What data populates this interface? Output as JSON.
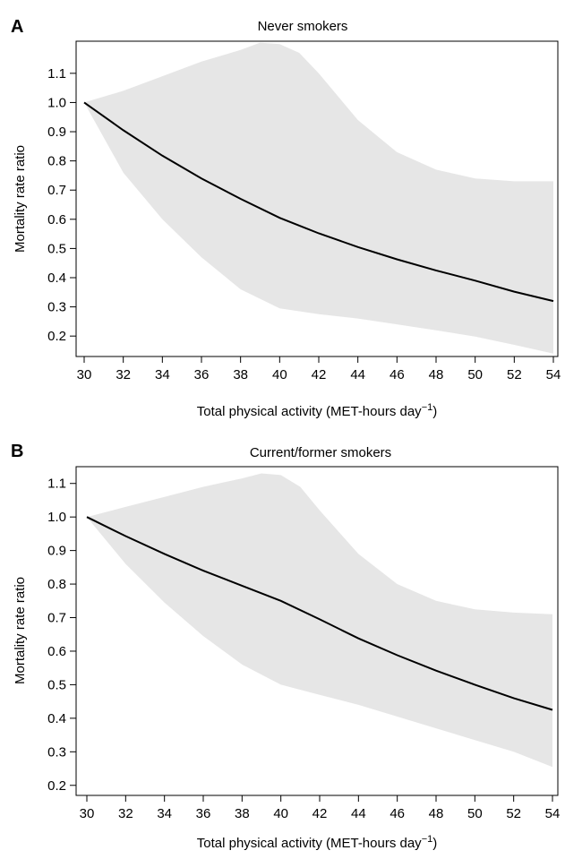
{
  "chart_data": [
    {
      "panel_letter": "A",
      "type": "line",
      "title": "Never smokers",
      "xlabel": "Total physical activity (MET-hours day",
      "xlabel_sup": "−1",
      "xlabel_close": ")",
      "ylabel": "Mortality rate ratio",
      "xlim": [
        30,
        54
      ],
      "ylim": [
        0.13,
        1.21
      ],
      "x_ticks": [
        30,
        32,
        34,
        36,
        38,
        40,
        42,
        44,
        46,
        48,
        50,
        52,
        54
      ],
      "y_ticks": [
        0.2,
        0.3,
        0.4,
        0.5,
        0.6,
        0.7,
        0.8,
        0.9,
        1.0,
        1.1
      ],
      "y_tick_labels": [
        "0.2",
        "0.3",
        "0.4",
        "0.5",
        "0.6",
        "0.7",
        "0.8",
        "0.9",
        "1.0",
        "1.1"
      ],
      "x": [
        30,
        32,
        34,
        36,
        38,
        40,
        42,
        44,
        46,
        48,
        50,
        52,
        54
      ],
      "series": [
        {
          "values": [
            1.0,
            0.905,
            0.818,
            0.74,
            0.67,
            0.605,
            0.552,
            0.505,
            0.463,
            0.425,
            0.39,
            0.352,
            0.32
          ]
        }
      ],
      "ci_upper": {
        "x": [
          30,
          32,
          34,
          36,
          38,
          39,
          40,
          41,
          42,
          44,
          46,
          48,
          50,
          52,
          54
        ],
        "y": [
          1.0,
          1.04,
          1.09,
          1.14,
          1.18,
          1.205,
          1.2,
          1.17,
          1.1,
          0.94,
          0.83,
          0.77,
          0.74,
          0.73,
          0.73
        ]
      },
      "ci_lower": {
        "x": [
          30,
          32,
          34,
          36,
          38,
          40,
          42,
          44,
          46,
          48,
          50,
          52,
          54
        ],
        "y": [
          1.0,
          0.76,
          0.6,
          0.47,
          0.36,
          0.295,
          0.275,
          0.26,
          0.24,
          0.22,
          0.198,
          0.17,
          0.14
        ]
      },
      "colors": {
        "line": "#000000",
        "band": "#e6e6e6"
      },
      "grid": false
    },
    {
      "panel_letter": "B",
      "type": "line",
      "title": "Current/former smokers",
      "xlabel": "Total physical activity (MET-hours day",
      "xlabel_sup": "−1",
      "xlabel_close": ")",
      "ylabel": "Mortality rate ratio",
      "xlim": [
        30,
        54
      ],
      "ylim": [
        0.17,
        1.15
      ],
      "x_ticks": [
        30,
        32,
        34,
        36,
        38,
        40,
        42,
        44,
        46,
        48,
        50,
        52,
        54
      ],
      "y_ticks": [
        0.2,
        0.3,
        0.4,
        0.5,
        0.6,
        0.7,
        0.8,
        0.9,
        1.0,
        1.1
      ],
      "y_tick_labels": [
        "0.2",
        "0.3",
        "0.4",
        "0.5",
        "0.6",
        "0.7",
        "0.8",
        "0.9",
        "1.0",
        "1.1"
      ],
      "x": [
        30,
        32,
        34,
        36,
        38,
        40,
        42,
        44,
        46,
        48,
        50,
        52,
        54
      ],
      "series": [
        {
          "values": [
            1.0,
            0.943,
            0.89,
            0.84,
            0.795,
            0.75,
            0.695,
            0.638,
            0.588,
            0.542,
            0.5,
            0.46,
            0.425
          ]
        }
      ],
      "ci_upper": {
        "x": [
          30,
          32,
          34,
          36,
          38,
          39,
          40,
          41,
          42,
          44,
          46,
          48,
          50,
          52,
          54
        ],
        "y": [
          1.0,
          1.03,
          1.06,
          1.09,
          1.115,
          1.13,
          1.125,
          1.09,
          1.02,
          0.89,
          0.8,
          0.75,
          0.725,
          0.715,
          0.71
        ]
      },
      "ci_lower": {
        "x": [
          30,
          32,
          34,
          36,
          38,
          40,
          42,
          44,
          46,
          48,
          50,
          52,
          54
        ],
        "y": [
          1.0,
          0.86,
          0.745,
          0.645,
          0.56,
          0.5,
          0.47,
          0.44,
          0.405,
          0.37,
          0.335,
          0.3,
          0.255
        ]
      },
      "colors": {
        "line": "#000000",
        "band": "#e6e6e6"
      },
      "grid": false
    }
  ]
}
